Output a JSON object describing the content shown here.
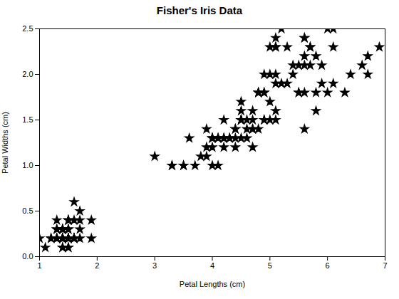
{
  "chart_data": {
    "type": "scatter",
    "title": "Fisher's Iris Data",
    "xlabel": "Petal Lengths (cm)",
    "ylabel": "Petal Widths (cm)",
    "xlim": [
      1,
      7
    ],
    "ylim": [
      0,
      2.5
    ],
    "xticks": [
      1,
      2,
      3,
      4,
      5,
      6,
      7
    ],
    "yticks": [
      {
        "value": 0,
        "label": "0.0"
      },
      0.5,
      {
        "value": 1,
        "label": "1.0"
      },
      1.5,
      {
        "value": 2,
        "label": "2.0"
      },
      2.5
    ],
    "marker": "star",
    "color": "black",
    "grid": false,
    "x": [
      1.4,
      1.4,
      1.3,
      1.5,
      1.4,
      1.7,
      1.4,
      1.5,
      1.4,
      1.5,
      1.5,
      1.6,
      1.4,
      1.1,
      1.2,
      1.5,
      1.3,
      1.4,
      1.7,
      1.5,
      1.7,
      1.5,
      1.0,
      1.7,
      1.9,
      1.6,
      1.6,
      1.5,
      1.4,
      1.6,
      1.6,
      1.5,
      1.5,
      1.4,
      1.5,
      1.2,
      1.3,
      1.4,
      1.3,
      1.5,
      1.3,
      1.3,
      1.3,
      1.6,
      1.9,
      1.4,
      1.6,
      1.4,
      1.5,
      1.4,
      4.7,
      4.5,
      4.9,
      4.0,
      4.6,
      4.5,
      4.7,
      3.3,
      4.6,
      3.9,
      3.5,
      4.2,
      4.0,
      4.7,
      3.6,
      4.4,
      4.5,
      4.1,
      4.5,
      3.9,
      4.8,
      4.0,
      4.9,
      4.7,
      4.3,
      4.4,
      4.8,
      5.0,
      4.5,
      3.5,
      3.8,
      3.7,
      3.9,
      5.1,
      4.5,
      4.5,
      4.7,
      4.4,
      4.1,
      4.0,
      4.4,
      4.6,
      4.0,
      3.3,
      4.2,
      4.2,
      4.2,
      4.3,
      3.0,
      4.1,
      6.0,
      5.1,
      5.9,
      5.6,
      5.8,
      6.6,
      4.5,
      6.3,
      5.8,
      6.1,
      5.1,
      5.3,
      5.5,
      5.0,
      5.1,
      5.3,
      5.5,
      6.7,
      6.9,
      5.0,
      5.7,
      4.9,
      6.7,
      4.9,
      5.7,
      6.0,
      4.8,
      4.9,
      5.6,
      5.8,
      6.1,
      6.4,
      5.6,
      5.1,
      5.6,
      6.1,
      5.6,
      5.5,
      4.8,
      5.4,
      5.6,
      5.1,
      5.9,
      5.7,
      5.2,
      5.0,
      5.2,
      5.4,
      5.1
    ],
    "values": [
      0.2,
      0.2,
      0.2,
      0.2,
      0.2,
      0.4,
      0.3,
      0.2,
      0.2,
      0.1,
      0.2,
      0.2,
      0.1,
      0.1,
      0.2,
      0.4,
      0.4,
      0.3,
      0.3,
      0.3,
      0.2,
      0.4,
      0.2,
      0.5,
      0.2,
      0.2,
      0.4,
      0.2,
      0.2,
      0.2,
      0.2,
      0.4,
      0.1,
      0.2,
      0.2,
      0.2,
      0.2,
      0.1,
      0.2,
      0.3,
      0.3,
      0.3,
      0.2,
      0.6,
      0.4,
      0.3,
      0.2,
      0.2,
      0.2,
      0.2,
      1.4,
      1.5,
      1.5,
      1.3,
      1.5,
      1.3,
      1.6,
      1.0,
      1.3,
      1.4,
      1.0,
      1.5,
      1.0,
      1.4,
      1.3,
      1.4,
      1.5,
      1.0,
      1.5,
      1.1,
      1.8,
      1.3,
      1.5,
      1.2,
      1.3,
      1.4,
      1.4,
      1.7,
      1.5,
      1.0,
      1.1,
      1.0,
      1.2,
      1.6,
      1.5,
      1.6,
      1.5,
      1.3,
      1.3,
      1.3,
      1.2,
      1.4,
      1.2,
      1.0,
      1.3,
      1.2,
      1.3,
      1.3,
      1.1,
      1.3,
      2.5,
      1.9,
      2.1,
      1.8,
      2.2,
      2.1,
      1.7,
      1.8,
      1.8,
      2.5,
      2.0,
      1.9,
      2.1,
      2.0,
      2.4,
      2.3,
      1.8,
      2.2,
      2.3,
      1.5,
      2.3,
      2.0,
      2.0,
      1.8,
      2.1,
      1.8,
      1.8,
      1.8,
      2.1,
      1.6,
      1.9,
      2.0,
      2.2,
      1.5,
      1.4,
      2.3,
      2.4,
      1.8,
      1.8,
      2.1,
      2.4,
      2.3,
      1.9,
      2.3,
      2.5,
      2.3,
      1.9,
      2.0,
      2.3
    ]
  }
}
